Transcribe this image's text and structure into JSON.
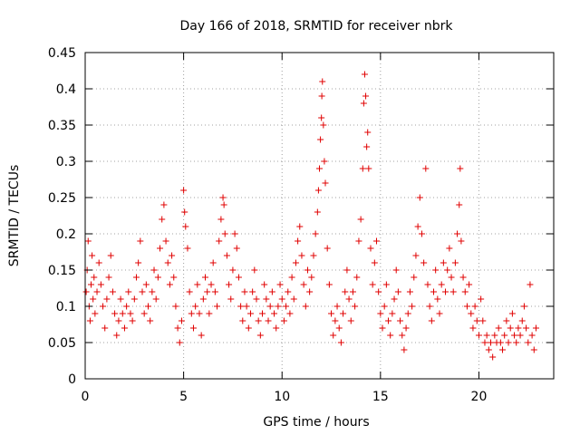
{
  "chart_data": {
    "type": "scatter",
    "title": "Day 166 of 2018, SRMTID for receiver nbrk",
    "xlabel": "GPS time / hours",
    "ylabel": "SRMTID / TECUs",
    "xlim": [
      0,
      23.8
    ],
    "ylim": [
      0,
      0.45
    ],
    "xticks": [
      0,
      5,
      10,
      15,
      20
    ],
    "xtick_labels": [
      "0",
      "5",
      "10",
      "15",
      "20"
    ],
    "yticks": [
      0,
      0.05,
      0.1,
      0.15,
      0.2,
      0.25,
      0.3,
      0.35,
      0.4,
      0.45
    ],
    "ytick_labels": [
      "0",
      "0.05",
      "0.1",
      "0.15",
      "0.2",
      "0.25",
      "0.3",
      "0.35",
      "0.4",
      "0.45"
    ],
    "grid": true,
    "marker": "+",
    "color": "#e00000",
    "series": [
      {
        "name": "SRMTID",
        "points": [
          [
            0.05,
            0.12
          ],
          [
            0.1,
            0.15
          ],
          [
            0.15,
            0.19
          ],
          [
            0.2,
            0.1
          ],
          [
            0.25,
            0.08
          ],
          [
            0.3,
            0.13
          ],
          [
            0.35,
            0.17
          ],
          [
            0.4,
            0.11
          ],
          [
            0.45,
            0.14
          ],
          [
            0.5,
            0.09
          ],
          [
            0.6,
            0.12
          ],
          [
            0.7,
            0.16
          ],
          [
            0.8,
            0.13
          ],
          [
            0.9,
            0.1
          ],
          [
            1.0,
            0.07
          ],
          [
            1.1,
            0.11
          ],
          [
            1.2,
            0.14
          ],
          [
            1.3,
            0.17
          ],
          [
            1.4,
            0.12
          ],
          [
            1.5,
            0.09
          ],
          [
            1.6,
            0.06
          ],
          [
            1.7,
            0.08
          ],
          [
            1.8,
            0.11
          ],
          [
            1.9,
            0.09
          ],
          [
            2.0,
            0.07
          ],
          [
            2.1,
            0.1
          ],
          [
            2.2,
            0.12
          ],
          [
            2.3,
            0.09
          ],
          [
            2.4,
            0.08
          ],
          [
            2.5,
            0.11
          ],
          [
            2.6,
            0.14
          ],
          [
            2.7,
            0.16
          ],
          [
            2.8,
            0.19
          ],
          [
            2.9,
            0.12
          ],
          [
            3.0,
            0.09
          ],
          [
            3.1,
            0.13
          ],
          [
            3.2,
            0.1
          ],
          [
            3.3,
            0.08
          ],
          [
            3.4,
            0.12
          ],
          [
            3.5,
            0.15
          ],
          [
            3.6,
            0.11
          ],
          [
            3.7,
            0.14
          ],
          [
            3.8,
            0.18
          ],
          [
            3.9,
            0.22
          ],
          [
            4.0,
            0.24
          ],
          [
            4.1,
            0.19
          ],
          [
            4.2,
            0.16
          ],
          [
            4.3,
            0.13
          ],
          [
            4.4,
            0.17
          ],
          [
            4.5,
            0.14
          ],
          [
            4.6,
            0.1
          ],
          [
            4.7,
            0.07
          ],
          [
            4.8,
            0.05
          ],
          [
            4.9,
            0.08
          ],
          [
            5.0,
            0.26
          ],
          [
            5.05,
            0.23
          ],
          [
            5.1,
            0.21
          ],
          [
            5.2,
            0.18
          ],
          [
            5.3,
            0.12
          ],
          [
            5.4,
            0.09
          ],
          [
            5.5,
            0.07
          ],
          [
            5.6,
            0.1
          ],
          [
            5.7,
            0.13
          ],
          [
            5.8,
            0.09
          ],
          [
            5.9,
            0.06
          ],
          [
            6.0,
            0.11
          ],
          [
            6.1,
            0.14
          ],
          [
            6.2,
            0.12
          ],
          [
            6.3,
            0.09
          ],
          [
            6.4,
            0.13
          ],
          [
            6.5,
            0.16
          ],
          [
            6.6,
            0.12
          ],
          [
            6.7,
            0.1
          ],
          [
            6.8,
            0.19
          ],
          [
            6.9,
            0.22
          ],
          [
            7.0,
            0.25
          ],
          [
            7.05,
            0.24
          ],
          [
            7.1,
            0.2
          ],
          [
            7.2,
            0.17
          ],
          [
            7.3,
            0.13
          ],
          [
            7.4,
            0.11
          ],
          [
            7.5,
            0.15
          ],
          [
            7.6,
            0.2
          ],
          [
            7.7,
            0.18
          ],
          [
            7.8,
            0.14
          ],
          [
            7.9,
            0.1
          ],
          [
            8.0,
            0.08
          ],
          [
            8.1,
            0.12
          ],
          [
            8.2,
            0.1
          ],
          [
            8.3,
            0.07
          ],
          [
            8.4,
            0.09
          ],
          [
            8.5,
            0.12
          ],
          [
            8.6,
            0.15
          ],
          [
            8.7,
            0.11
          ],
          [
            8.8,
            0.08
          ],
          [
            8.9,
            0.06
          ],
          [
            9.0,
            0.09
          ],
          [
            9.1,
            0.13
          ],
          [
            9.2,
            0.11
          ],
          [
            9.3,
            0.08
          ],
          [
            9.4,
            0.1
          ],
          [
            9.5,
            0.12
          ],
          [
            9.6,
            0.09
          ],
          [
            9.7,
            0.07
          ],
          [
            9.8,
            0.1
          ],
          [
            9.9,
            0.13
          ],
          [
            10.0,
            0.11
          ],
          [
            10.1,
            0.08
          ],
          [
            10.2,
            0.1
          ],
          [
            10.3,
            0.12
          ],
          [
            10.4,
            0.09
          ],
          [
            10.5,
            0.14
          ],
          [
            10.6,
            0.11
          ],
          [
            10.7,
            0.16
          ],
          [
            10.8,
            0.19
          ],
          [
            10.9,
            0.21
          ],
          [
            11.0,
            0.17
          ],
          [
            11.1,
            0.13
          ],
          [
            11.2,
            0.1
          ],
          [
            11.3,
            0.15
          ],
          [
            11.4,
            0.12
          ],
          [
            11.5,
            0.14
          ],
          [
            11.6,
            0.17
          ],
          [
            11.7,
            0.2
          ],
          [
            11.8,
            0.23
          ],
          [
            11.85,
            0.26
          ],
          [
            11.9,
            0.29
          ],
          [
            11.95,
            0.33
          ],
          [
            12.0,
            0.36
          ],
          [
            12.02,
            0.39
          ],
          [
            12.05,
            0.41
          ],
          [
            12.1,
            0.35
          ],
          [
            12.15,
            0.3
          ],
          [
            12.2,
            0.27
          ],
          [
            12.3,
            0.18
          ],
          [
            12.4,
            0.13
          ],
          [
            12.5,
            0.09
          ],
          [
            12.6,
            0.06
          ],
          [
            12.7,
            0.08
          ],
          [
            12.8,
            0.1
          ],
          [
            12.9,
            0.07
          ],
          [
            13.0,
            0.05
          ],
          [
            13.1,
            0.09
          ],
          [
            13.2,
            0.12
          ],
          [
            13.3,
            0.15
          ],
          [
            13.4,
            0.11
          ],
          [
            13.5,
            0.08
          ],
          [
            13.6,
            0.12
          ],
          [
            13.7,
            0.1
          ],
          [
            13.8,
            0.14
          ],
          [
            13.9,
            0.19
          ],
          [
            14.0,
            0.22
          ],
          [
            14.1,
            0.29
          ],
          [
            14.15,
            0.38
          ],
          [
            14.2,
            0.42
          ],
          [
            14.25,
            0.39
          ],
          [
            14.3,
            0.32
          ],
          [
            14.35,
            0.34
          ],
          [
            14.4,
            0.29
          ],
          [
            14.5,
            0.18
          ],
          [
            14.6,
            0.13
          ],
          [
            14.7,
            0.16
          ],
          [
            14.8,
            0.19
          ],
          [
            14.9,
            0.12
          ],
          [
            15.0,
            0.09
          ],
          [
            15.1,
            0.07
          ],
          [
            15.2,
            0.1
          ],
          [
            15.3,
            0.13
          ],
          [
            15.4,
            0.08
          ],
          [
            15.5,
            0.06
          ],
          [
            15.6,
            0.09
          ],
          [
            15.7,
            0.11
          ],
          [
            15.8,
            0.15
          ],
          [
            15.9,
            0.12
          ],
          [
            16.0,
            0.08
          ],
          [
            16.1,
            0.06
          ],
          [
            16.2,
            0.04
          ],
          [
            16.3,
            0.07
          ],
          [
            16.4,
            0.09
          ],
          [
            16.5,
            0.12
          ],
          [
            16.6,
            0.1
          ],
          [
            16.7,
            0.14
          ],
          [
            16.8,
            0.17
          ],
          [
            16.9,
            0.21
          ],
          [
            17.0,
            0.25
          ],
          [
            17.1,
            0.2
          ],
          [
            17.2,
            0.16
          ],
          [
            17.3,
            0.29
          ],
          [
            17.4,
            0.13
          ],
          [
            17.5,
            0.1
          ],
          [
            17.6,
            0.08
          ],
          [
            17.7,
            0.12
          ],
          [
            17.8,
            0.15
          ],
          [
            17.9,
            0.11
          ],
          [
            18.0,
            0.09
          ],
          [
            18.1,
            0.13
          ],
          [
            18.2,
            0.16
          ],
          [
            18.3,
            0.12
          ],
          [
            18.4,
            0.15
          ],
          [
            18.5,
            0.18
          ],
          [
            18.6,
            0.14
          ],
          [
            18.7,
            0.12
          ],
          [
            18.8,
            0.16
          ],
          [
            18.9,
            0.2
          ],
          [
            19.0,
            0.24
          ],
          [
            19.05,
            0.29
          ],
          [
            19.1,
            0.19
          ],
          [
            19.2,
            0.14
          ],
          [
            19.3,
            0.12
          ],
          [
            19.4,
            0.1
          ],
          [
            19.5,
            0.13
          ],
          [
            19.6,
            0.09
          ],
          [
            19.7,
            0.07
          ],
          [
            19.8,
            0.1
          ],
          [
            19.9,
            0.08
          ],
          [
            20.0,
            0.06
          ],
          [
            20.1,
            0.11
          ],
          [
            20.2,
            0.08
          ],
          [
            20.3,
            0.05
          ],
          [
            20.4,
            0.06
          ],
          [
            20.5,
            0.04
          ],
          [
            20.6,
            0.05
          ],
          [
            20.7,
            0.03
          ],
          [
            20.8,
            0.06
          ],
          [
            20.9,
            0.05
          ],
          [
            21.0,
            0.07
          ],
          [
            21.1,
            0.05
          ],
          [
            21.2,
            0.04
          ],
          [
            21.3,
            0.06
          ],
          [
            21.4,
            0.08
          ],
          [
            21.5,
            0.05
          ],
          [
            21.6,
            0.07
          ],
          [
            21.7,
            0.09
          ],
          [
            21.8,
            0.06
          ],
          [
            21.9,
            0.05
          ],
          [
            22.0,
            0.07
          ],
          [
            22.1,
            0.06
          ],
          [
            22.2,
            0.08
          ],
          [
            22.3,
            0.1
          ],
          [
            22.4,
            0.07
          ],
          [
            22.5,
            0.05
          ],
          [
            22.6,
            0.13
          ],
          [
            22.7,
            0.06
          ],
          [
            22.8,
            0.04
          ],
          [
            22.9,
            0.07
          ]
        ]
      }
    ]
  }
}
